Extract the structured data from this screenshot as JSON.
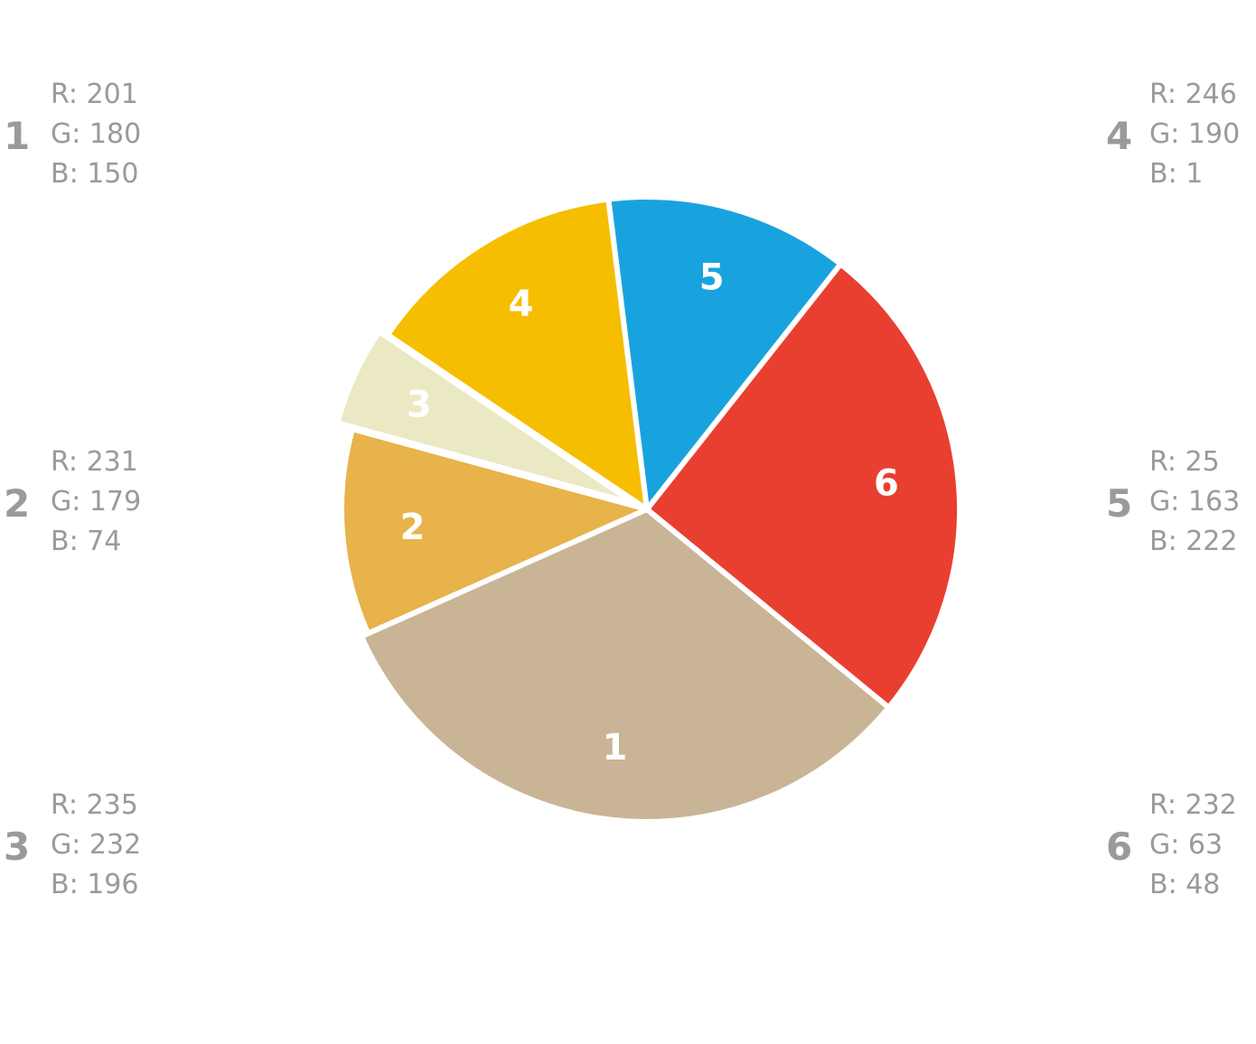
{
  "chart_data": {
    "type": "pie",
    "slices": [
      {
        "label": "1",
        "value": 32.4,
        "color": "#c9b496",
        "rgb": {
          "r": "R: 201",
          "g": "G: 180",
          "b": "B: 150"
        }
      },
      {
        "label": "2",
        "value": 10.9,
        "color": "#e7b34a",
        "rgb": {
          "r": "R: 231",
          "g": "G: 179",
          "b": "B: 74"
        }
      },
      {
        "label": "3",
        "value": 5.2,
        "color": "#ebe8c4",
        "rgb": {
          "r": "R: 235",
          "g": "G: 232",
          "b": "B: 196"
        }
      },
      {
        "label": "4",
        "value": 13.6,
        "color": "#f6be01",
        "rgb": {
          "r": "R: 246",
          "g": "G: 190",
          "b": "B: 1"
        }
      },
      {
        "label": "5",
        "value": 12.6,
        "color": "#19a3de",
        "rgb": {
          "r": "R: 25",
          "g": "G: 163",
          "b": "B: 222"
        }
      },
      {
        "label": "6",
        "value": 25.3,
        "color": "#e83f30",
        "rgb": {
          "r": "R: 232",
          "g": "G: 63",
          "b": "B: 48"
        }
      }
    ]
  }
}
